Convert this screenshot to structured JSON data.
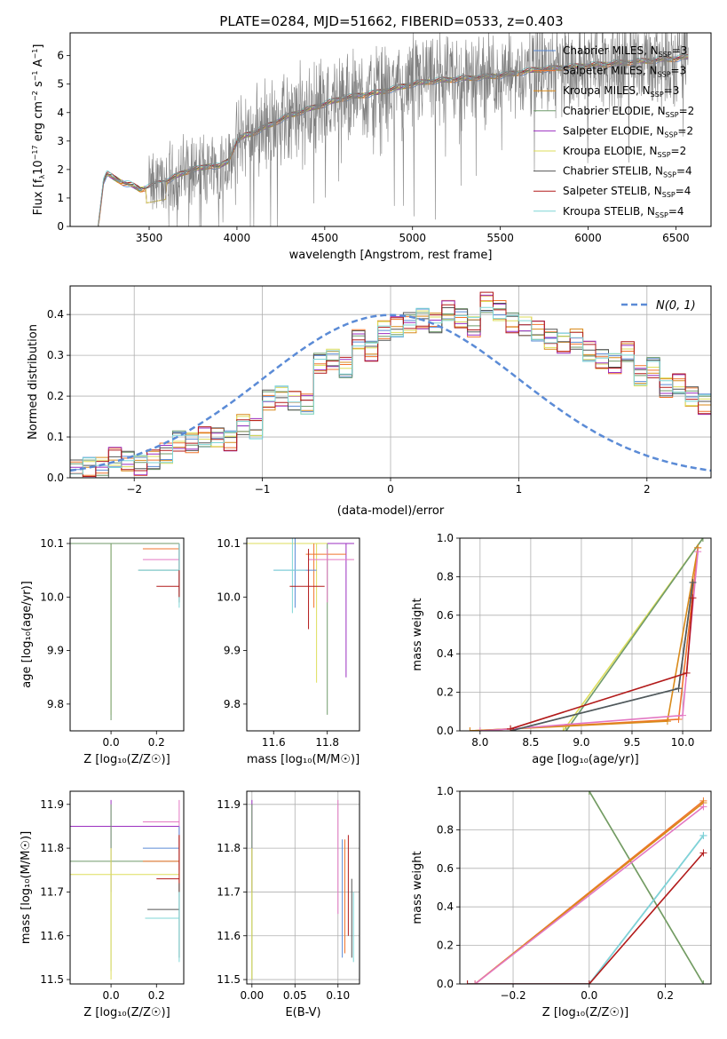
{
  "figure": {
    "title": "PLATE=0284, MJD=51662, FIBERID=0533, z=0.403"
  },
  "colors": {
    "chabrier_miles": "#5b8bd6",
    "salpeter_miles": "#f0752d",
    "kroupa_miles": "#d98a1a",
    "chabrier_elodie": "#6f9a6a",
    "salpeter_elodie": "#9b2fc0",
    "kroupa_elodie": "#dede5b",
    "chabrier_stelib": "#555555",
    "salpeter_stelib": "#b21a1a",
    "kroupa_stelib": "#7fd6d6",
    "data": "#808080",
    "gauss": "#5b8bd6",
    "pink": "#e377c2"
  },
  "chart_data": [
    {
      "id": "spectrum",
      "type": "line",
      "xlabel": "wavelength [Angstrom, rest frame]",
      "ylabel_html": "Flux [f<tspan font-size='8' dy='3'>λ</tspan><tspan dy='-3'>10</tspan><tspan font-size='8' dy='-5'>−17</tspan><tspan dy='5'> erg cm</tspan><tspan font-size='8' dy='-5'>−2</tspan><tspan dy='5'> s</tspan><tspan font-size='8' dy='-5'>−1</tspan><tspan dy='5'> A</tspan><tspan font-size='8' dy='-5'>−1</tspan><tspan dy='5'>]</tspan>",
      "xlim": [
        3050,
        6700
      ],
      "ylim": [
        0,
        6.8
      ],
      "xticks": [
        3500,
        4000,
        4500,
        5000,
        5500,
        6000,
        6500
      ],
      "yticks": [
        0,
        1,
        2,
        3,
        4,
        5,
        6
      ],
      "grid": false,
      "legend": "upper right",
      "series": [
        {
          "name": "Chabrier MILES",
          "nssp": "3"
        },
        {
          "name": "Salpeter MILES",
          "nssp": "3"
        },
        {
          "name": "Kroupa MILES",
          "nssp": "3"
        },
        {
          "name": "Chabrier ELODIE",
          "nssp": "2"
        },
        {
          "name": "Salpeter ELODIE",
          "nssp": "2"
        },
        {
          "name": "Kroupa ELODIE",
          "nssp": "2"
        },
        {
          "name": "Chabrier STELIB",
          "nssp": "4"
        },
        {
          "name": "Salpeter STELIB",
          "nssp": "4"
        },
        {
          "name": "Kroupa STELIB",
          "nssp": "4"
        }
      ],
      "continuum": {
        "x": [
          3210,
          3240,
          3260,
          3300,
          3350,
          3400,
          3450,
          3500,
          3550,
          3600,
          3650,
          3700,
          3750,
          3800,
          3850,
          3900,
          3950,
          4000,
          4050,
          4100,
          4200,
          4300,
          4400,
          4500,
          4600,
          4700,
          4800,
          4900,
          5000,
          5100,
          5200,
          5300,
          5400,
          5500,
          5600,
          5700,
          5800,
          5900,
          6000,
          6100,
          6200,
          6300,
          6400,
          6500,
          6570
        ],
        "y": [
          0.0,
          1.6,
          1.85,
          1.7,
          1.55,
          1.45,
          1.3,
          1.4,
          1.5,
          1.6,
          1.75,
          1.9,
          2.0,
          2.05,
          2.15,
          2.1,
          2.3,
          3.0,
          3.2,
          3.3,
          3.6,
          3.9,
          4.1,
          4.3,
          4.5,
          4.6,
          4.7,
          4.85,
          5.0,
          5.1,
          5.15,
          5.2,
          5.25,
          5.3,
          5.4,
          5.5,
          5.55,
          5.6,
          5.65,
          5.7,
          5.75,
          5.8,
          5.85,
          5.9,
          5.95
        ]
      },
      "noise_start": 3500
    },
    {
      "id": "histogram",
      "type": "bar",
      "xlabel": "(data-model)/error",
      "ylabel": "Normed distribution",
      "xlim": [
        -2.5,
        2.5
      ],
      "ylim": [
        0,
        0.47
      ],
      "xticks": [
        -2,
        -1,
        0,
        1,
        2
      ],
      "yticks": [
        0.0,
        0.1,
        0.2,
        0.3,
        0.4
      ],
      "grid": true,
      "legend_label": "N(0, 1)",
      "bin_width": 0.1,
      "bin_start": -2.5,
      "hist_values": [
        0.02,
        0.025,
        0.025,
        0.05,
        0.04,
        0.03,
        0.045,
        0.06,
        0.09,
        0.085,
        0.1,
        0.1,
        0.09,
        0.13,
        0.12,
        0.19,
        0.2,
        0.19,
        0.18,
        0.28,
        0.29,
        0.27,
        0.34,
        0.31,
        0.36,
        0.37,
        0.38,
        0.39,
        0.38,
        0.41,
        0.39,
        0.37,
        0.43,
        0.41,
        0.38,
        0.37,
        0.36,
        0.34,
        0.33,
        0.34,
        0.31,
        0.29,
        0.28,
        0.31,
        0.25,
        0.27,
        0.22,
        0.23,
        0.2,
        0.18,
        0.15,
        0.16,
        0.13,
        0.12,
        0.12,
        0.1,
        0.1,
        0.08,
        0.08,
        0.06,
        0.05,
        0.045,
        0.035,
        0.035,
        0.03,
        0.03,
        0.028,
        0.025,
        0.02,
        0.02,
        0.015,
        0.01,
        0.01,
        0.005
      ]
    },
    {
      "id": "age_vs_Z",
      "type": "scatter",
      "xlabel": "Z [log₁₀(Z/Z☉)]",
      "ylabel": "age [log₁₀(age/yr)]",
      "xlim": [
        -0.18,
        0.32
      ],
      "ylim": [
        9.75,
        10.11
      ],
      "xticks": [
        0.0,
        0.2
      ],
      "yticks": [
        9.8,
        9.9,
        10.0,
        10.1
      ],
      "grid": false
    },
    {
      "id": "age_vs_mass",
      "type": "scatter",
      "xlabel": "mass [log₁₀(M/M☉)]",
      "xlim": [
        11.5,
        11.92
      ],
      "ylim": [
        9.75,
        10.11
      ],
      "xticks": [
        11.6,
        11.8
      ],
      "yticks": [
        9.8,
        9.9,
        10.0,
        10.1
      ],
      "grid": false
    },
    {
      "id": "massweight_vs_age",
      "type": "line",
      "xlabel": "age [log₁₀(age/yr)]",
      "ylabel": "mass weight",
      "xlim": [
        7.8,
        10.28
      ],
      "ylim": [
        0,
        1.0
      ],
      "xticks": [
        8.0,
        8.5,
        9.0,
        9.5,
        10.0
      ],
      "yticks": [
        0.0,
        0.2,
        0.4,
        0.6,
        0.8,
        1.0
      ],
      "grid": true
    },
    {
      "id": "mass_vs_Z",
      "type": "scatter",
      "xlabel": "Z [log₁₀(Z/Z☉)]",
      "ylabel": "mass [log₁₀(M/M☉)]",
      "xlim": [
        -0.18,
        0.32
      ],
      "ylim": [
        11.49,
        11.93
      ],
      "xticks": [
        0.0,
        0.2
      ],
      "yticks": [
        11.5,
        11.6,
        11.7,
        11.8,
        11.9
      ],
      "grid": false
    },
    {
      "id": "mass_vs_ebv",
      "type": "scatter",
      "xlabel": "E(B-V)",
      "xlim": [
        -0.006,
        0.125
      ],
      "ylim": [
        11.49,
        11.93
      ],
      "xticks": [
        0.0,
        0.05,
        0.1
      ],
      "yticks": [
        11.5,
        11.6,
        11.7,
        11.8,
        11.9
      ],
      "grid": true
    },
    {
      "id": "massweight_vs_Z",
      "type": "line",
      "xlabel": "Z [log₁₀(Z/Z☉)]",
      "ylabel": "mass weight",
      "xlim": [
        -0.34,
        0.32
      ],
      "ylim": [
        0,
        1.0
      ],
      "xticks": [
        -0.2,
        0.0,
        0.2
      ],
      "yticks": [
        0.0,
        0.2,
        0.4,
        0.6,
        0.8,
        1.0
      ],
      "grid": true
    }
  ]
}
